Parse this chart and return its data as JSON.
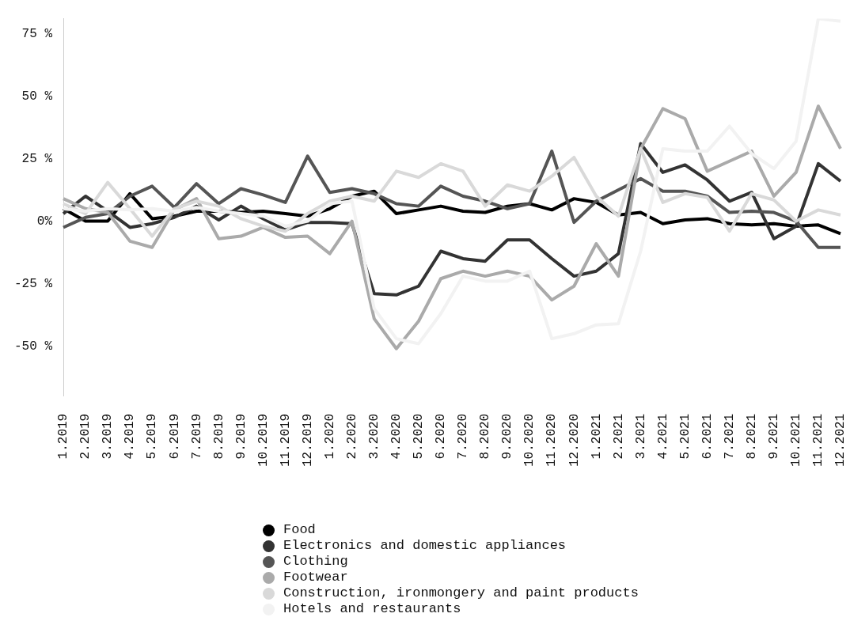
{
  "chart_data": {
    "type": "line",
    "categories": [
      "1.2019",
      "2.2019",
      "3.2019",
      "4.2019",
      "5.2019",
      "6.2019",
      "7.2019",
      "8.2019",
      "9.2019",
      "10.2019",
      "11.2019",
      "12.2019",
      "1.2020",
      "2.2020",
      "3.2020",
      "4.2020",
      "5.2020",
      "6.2020",
      "7.2020",
      "8.2020",
      "9.2020",
      "10.2020",
      "11.2020",
      "12.2020",
      "1.2021",
      "2.2021",
      "3.2021",
      "4.2021",
      "5.2021",
      "6.2021",
      "7.2021",
      "8.2021",
      "9.2021",
      "10.2021",
      "11.2021",
      "12.2021"
    ],
    "series": [
      {
        "name": "Food",
        "color": "#000000",
        "values": [
          5,
          0,
          0,
          11,
          1,
          2,
          4,
          4,
          3.5,
          4,
          3,
          2,
          5,
          10,
          12,
          3,
          4.5,
          6,
          4,
          3.5,
          6,
          7,
          4.5,
          9,
          7.5,
          2.5,
          3.5,
          -1,
          0.5,
          1,
          -1,
          -1.5,
          -1,
          -2,
          -1.5,
          -5
        ]
      },
      {
        "name": "Electronics and domestic appliances",
        "color": "#333333",
        "values": [
          3,
          10,
          4,
          -2.5,
          -1,
          1.5,
          6,
          0.5,
          6,
          1,
          -3.5,
          -0.5,
          -0.5,
          -1,
          -29,
          -29.5,
          -26,
          -12,
          -15,
          -16,
          -7.5,
          -7.5,
          -15,
          -22,
          -20,
          -13,
          31,
          19.5,
          22.5,
          16.5,
          8,
          11.5,
          -7,
          -2,
          23,
          16
        ]
      },
      {
        "name": "Clothing",
        "color": "#555555",
        "values": [
          -2.5,
          1.5,
          3,
          10,
          14,
          5.5,
          15,
          7,
          13,
          10.5,
          7.5,
          26,
          11.5,
          13,
          11,
          7,
          6,
          14,
          10,
          8,
          5,
          7,
          28,
          -0.5,
          8,
          12.5,
          17,
          12,
          12,
          10,
          3.5,
          4,
          3.5,
          0,
          -10.5,
          -10.5
        ]
      },
      {
        "name": "Footwear",
        "color": "#aaaaaa",
        "values": [
          9,
          5,
          3.5,
          -8,
          -10.5,
          4.5,
          9,
          -7,
          -6,
          -2.5,
          -6.5,
          -6,
          -13,
          0,
          -39,
          -51,
          -40,
          -23,
          -20,
          -22,
          -20,
          -22,
          -31.5,
          -26,
          -9,
          -22,
          29,
          45,
          41,
          20,
          24,
          28,
          10,
          19.5,
          46,
          29
        ]
      },
      {
        "name": "Construction, ironmongery and paint products",
        "color": "#d9d9d9",
        "values": [
          7,
          3,
          15.5,
          5,
          -6,
          5,
          8,
          6,
          1,
          -2,
          -4,
          3,
          8,
          10,
          8,
          20,
          17.5,
          23,
          20,
          6,
          14.5,
          12,
          18,
          25.5,
          10,
          2,
          29,
          7.5,
          11,
          9.5,
          -4,
          11,
          8.5,
          0,
          4.5,
          2.5
        ]
      },
      {
        "name": "Hotels and restaurants",
        "color": "#f2f2f2",
        "values": [
          5,
          4,
          5,
          4.5,
          5,
          4,
          5.5,
          4,
          3,
          2,
          -2,
          0,
          7,
          8,
          -35,
          -47,
          -49,
          -37,
          -22,
          -24,
          -24,
          -20,
          -47,
          -45,
          -41.5,
          -41,
          -12,
          29,
          28,
          28,
          38,
          27,
          21,
          32,
          81,
          80
        ]
      }
    ],
    "ylim": [
      -70,
      81
    ],
    "yticks": [
      {
        "value": -50,
        "label": "-50 %"
      },
      {
        "value": -25,
        "label": "-25 %"
      },
      {
        "value": 0,
        "label": "0%"
      },
      {
        "value": 25,
        "label": "25 %"
      },
      {
        "value": 50,
        "label": "50 %"
      },
      {
        "value": 75,
        "label": "75 %"
      }
    ],
    "grid": false,
    "legend": "bottom",
    "marker": "none",
    "line_style": "solid"
  }
}
